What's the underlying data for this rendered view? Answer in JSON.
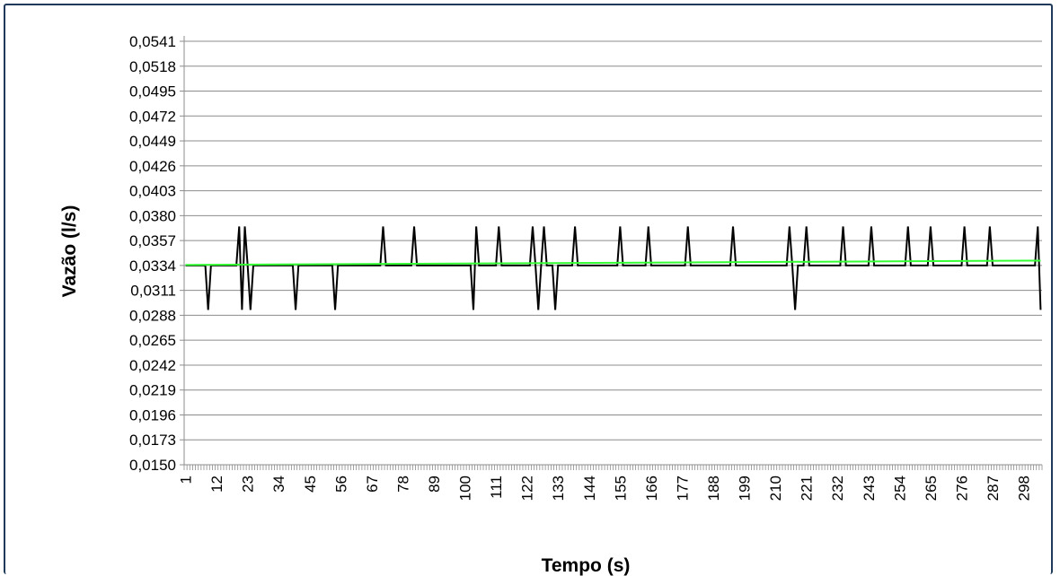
{
  "chart_data": {
    "type": "line",
    "title": "",
    "xlabel": "Tempo (s)",
    "ylabel": "Vazão (l/s)",
    "ylim": [
      0.015,
      0.0541
    ],
    "y_ticks": [
      "0,0150",
      "0,0173",
      "0,0196",
      "0,0219",
      "0,0242",
      "0,0265",
      "0,0288",
      "0,0311",
      "0,0334",
      "0,0357",
      "0,0380",
      "0,0403",
      "0,0426",
      "0,0449",
      "0,0472",
      "0,0495",
      "0,0518",
      "0,0541"
    ],
    "x_range": [
      1,
      304
    ],
    "x_tick_labels": [
      "1",
      "12",
      "23",
      "34",
      "45",
      "56",
      "67",
      "78",
      "89",
      "100",
      "111",
      "122",
      "133",
      "144",
      "155",
      "166",
      "177",
      "188",
      "199",
      "210",
      "221",
      "232",
      "243",
      "254",
      "265",
      "276",
      "287",
      "298"
    ],
    "grid": "horizontal",
    "legend": "none",
    "baseline_value": 0.0334,
    "high_value": 0.037,
    "low_value": 0.0293,
    "series": [
      {
        "color": "#000000",
        "points": [
          [
            1,
            0.0334
          ],
          [
            8,
            0.0334
          ],
          [
            9,
            0.0293
          ],
          [
            10,
            0.0334
          ],
          [
            19,
            0.0334
          ],
          [
            20,
            0.037
          ],
          [
            21,
            0.0293
          ],
          [
            22,
            0.037
          ],
          [
            23,
            0.0334
          ],
          [
            24,
            0.0293
          ],
          [
            25,
            0.0334
          ],
          [
            39,
            0.0334
          ],
          [
            40,
            0.0293
          ],
          [
            41,
            0.0334
          ],
          [
            53,
            0.0334
          ],
          [
            54,
            0.0293
          ],
          [
            55,
            0.0334
          ],
          [
            70,
            0.0334
          ],
          [
            71,
            0.037
          ],
          [
            72,
            0.0334
          ],
          [
            81,
            0.0334
          ],
          [
            82,
            0.037
          ],
          [
            83,
            0.0334
          ],
          [
            102,
            0.0334
          ],
          [
            103,
            0.0293
          ],
          [
            104,
            0.037
          ],
          [
            105,
            0.0334
          ],
          [
            111,
            0.0334
          ],
          [
            112,
            0.037
          ],
          [
            113,
            0.0334
          ],
          [
            123,
            0.0334
          ],
          [
            124,
            0.037
          ],
          [
            125,
            0.0334
          ],
          [
            126,
            0.0293
          ],
          [
            127,
            0.0334
          ],
          [
            128,
            0.037
          ],
          [
            129,
            0.0334
          ],
          [
            131,
            0.0334
          ],
          [
            132,
            0.0293
          ],
          [
            133,
            0.0334
          ],
          [
            138,
            0.0334
          ],
          [
            139,
            0.037
          ],
          [
            140,
            0.0334
          ],
          [
            154,
            0.0334
          ],
          [
            155,
            0.037
          ],
          [
            156,
            0.0334
          ],
          [
            164,
            0.0334
          ],
          [
            165,
            0.037
          ],
          [
            166,
            0.0334
          ],
          [
            178,
            0.0334
          ],
          [
            179,
            0.037
          ],
          [
            180,
            0.0334
          ],
          [
            194,
            0.0334
          ],
          [
            195,
            0.037
          ],
          [
            196,
            0.0334
          ],
          [
            214,
            0.0334
          ],
          [
            215,
            0.037
          ],
          [
            216,
            0.0334
          ],
          [
            217,
            0.0293
          ],
          [
            218,
            0.0334
          ],
          [
            220,
            0.0334
          ],
          [
            221,
            0.037
          ],
          [
            222,
            0.0334
          ],
          [
            233,
            0.0334
          ],
          [
            234,
            0.037
          ],
          [
            235,
            0.0334
          ],
          [
            243,
            0.0334
          ],
          [
            244,
            0.037
          ],
          [
            245,
            0.0334
          ],
          [
            256,
            0.0334
          ],
          [
            257,
            0.037
          ],
          [
            258,
            0.0334
          ],
          [
            264,
            0.0334
          ],
          [
            265,
            0.037
          ],
          [
            266,
            0.0334
          ],
          [
            276,
            0.0334
          ],
          [
            277,
            0.037
          ],
          [
            278,
            0.0334
          ],
          [
            285,
            0.0334
          ],
          [
            286,
            0.037
          ],
          [
            287,
            0.0334
          ],
          [
            302,
            0.0334
          ],
          [
            303,
            0.037
          ],
          [
            304,
            0.0293
          ]
        ]
      },
      {
        "color": "#33ff33",
        "points": [
          [
            1,
            0.03345
          ],
          [
            304,
            0.03385
          ]
        ]
      }
    ]
  }
}
